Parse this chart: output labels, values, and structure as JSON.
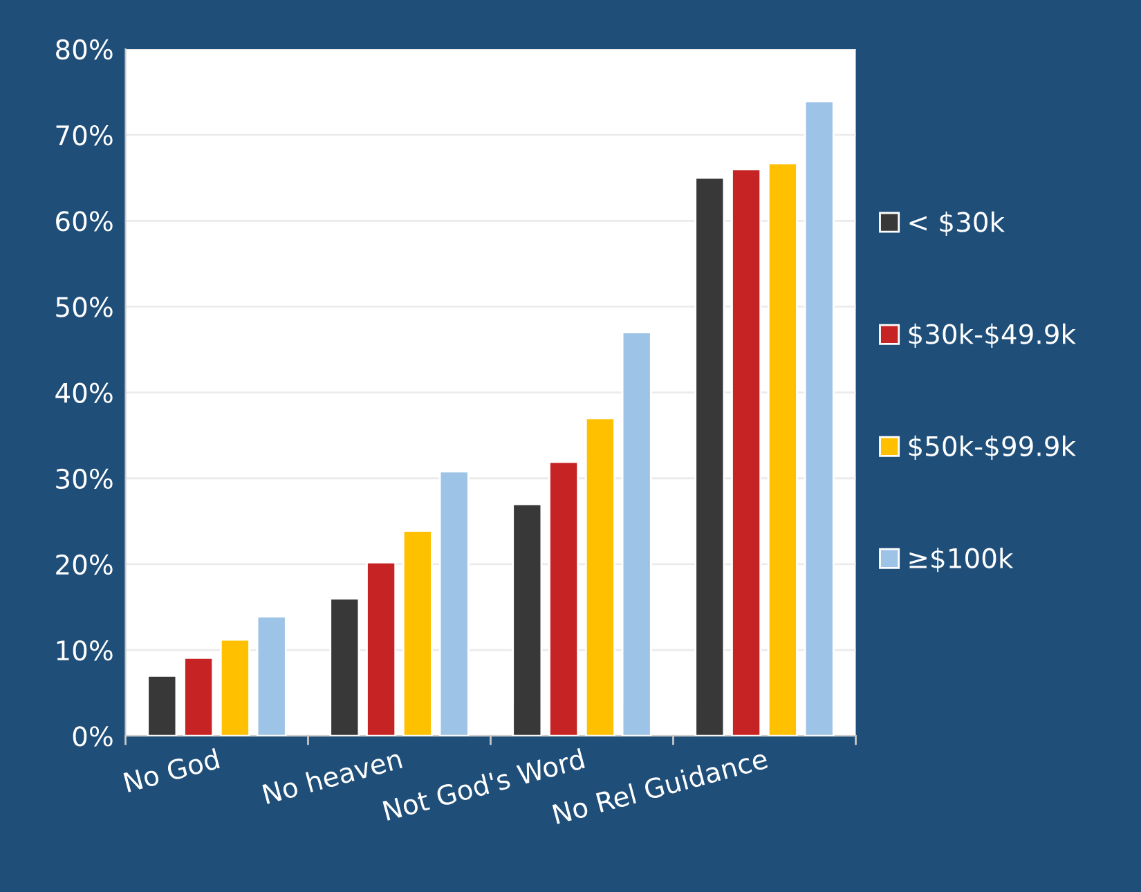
{
  "chart_data": {
    "type": "bar",
    "categories": [
      "No God",
      "No heaven",
      "Not God's Word",
      "No Rel Guidance"
    ],
    "series": [
      {
        "name": "< $30k",
        "color": "#383838",
        "values": [
          7,
          16,
          27,
          65
        ]
      },
      {
        "name": "$30k-$49.9k",
        "color": "#c62324",
        "values": [
          9.1,
          20.2,
          31.9,
          66
        ]
      },
      {
        "name": "$50k-$99.9k",
        "color": "#ffc000",
        "values": [
          11.2,
          23.9,
          37,
          66.7
        ]
      },
      {
        "name": "≥$100k",
        "color": "#9dc3e6",
        "values": [
          13.9,
          30.8,
          47,
          73.9
        ]
      }
    ],
    "ylim": [
      0,
      80
    ],
    "yticks": [
      {
        "value": 0,
        "label": "0%"
      },
      {
        "value": 10,
        "label": "10%"
      },
      {
        "value": 20,
        "label": "20%"
      },
      {
        "value": 30,
        "label": "30%"
      },
      {
        "value": 40,
        "label": "40%"
      },
      {
        "value": 50,
        "label": "50%"
      },
      {
        "value": 60,
        "label": "60%"
      },
      {
        "value": 70,
        "label": "70%"
      },
      {
        "value": 80,
        "label": "80%"
      }
    ],
    "grid": "y",
    "legend": "right"
  }
}
